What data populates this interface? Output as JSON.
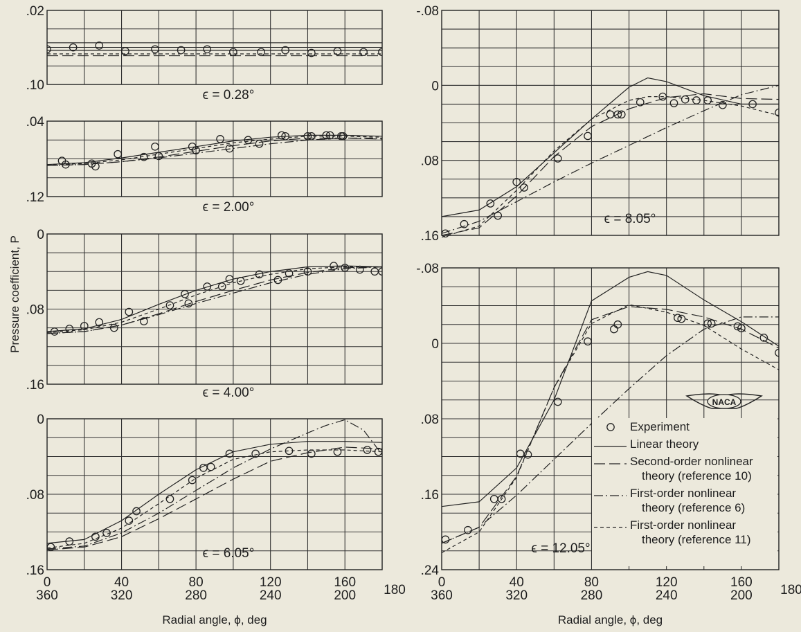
{
  "figure": {
    "ylabel": "Pressure coefficient, P",
    "xlabel": "Radial angle, ϕ, deg",
    "x_ticks_top": [
      "0",
      "40",
      "80",
      "120",
      "160"
    ],
    "x_ticks_bottom": [
      "360",
      "320",
      "280",
      "240",
      "200",
      "180"
    ],
    "logo_text": "NACA",
    "legend": [
      {
        "style": "circle",
        "label_lines": [
          "Experiment"
        ]
      },
      {
        "style": "solid",
        "label_lines": [
          "Linear theory"
        ]
      },
      {
        "style": "long-dash",
        "label_lines": [
          "Second-order nonlinear",
          "theory (reference 10)"
        ]
      },
      {
        "style": "dash-dot",
        "label_lines": [
          "First-order nonlinear",
          "theory (reference 6)"
        ]
      },
      {
        "style": "short-dash",
        "label_lines": [
          "First-order nonlinear",
          "theory (reference 11)"
        ]
      }
    ]
  },
  "chart_data": [
    {
      "type": "line",
      "panel": "left-1",
      "annotation": "ϵ = 0.28°",
      "xlim": [
        0,
        180
      ],
      "ylim": [
        0.02,
        0.1
      ],
      "y_inverted": true,
      "y_ticks": [
        ".02",
        ".10"
      ],
      "series": [
        {
          "name": "Experiment",
          "style": "points",
          "x": [
            0,
            14,
            28,
            42,
            58,
            72,
            86,
            100,
            115,
            128,
            142,
            156,
            170,
            180
          ],
          "y": [
            0.062,
            0.06,
            0.058,
            0.064,
            0.062,
            0.063,
            0.062,
            0.065,
            0.065,
            0.063,
            0.066,
            0.064,
            0.065,
            0.065
          ]
        },
        {
          "name": "Linear theory",
          "style": "solid",
          "x": [
            0,
            180
          ],
          "y": [
            0.063,
            0.063
          ]
        },
        {
          "name": "Second-order nonlinear theory (reference 10)",
          "style": "long-dash",
          "x": [
            0,
            180
          ],
          "y": [
            0.069,
            0.069
          ]
        },
        {
          "name": "First-order nonlinear theory (reference 11)",
          "style": "short-dash",
          "x": [
            0,
            180
          ],
          "y": [
            0.067,
            0.067
          ]
        },
        {
          "name": "Linear theory",
          "style": "solid",
          "x": [
            0,
            180
          ],
          "y": [
            0.055,
            0.055
          ]
        }
      ]
    },
    {
      "type": "line",
      "panel": "left-2",
      "annotation": "ϵ = 2.00°",
      "xlim": [
        0,
        180
      ],
      "ylim": [
        0.04,
        0.12
      ],
      "y_inverted": true,
      "y_ticks": [
        ".04",
        ".12"
      ],
      "series": [
        {
          "name": "Experiment",
          "style": "points",
          "x": [
            8,
            10,
            24,
            26,
            38,
            52,
            58,
            60,
            78,
            80,
            93,
            98,
            108,
            114,
            126,
            128,
            140,
            142,
            150,
            152,
            158,
            159
          ],
          "y": [
            0.082,
            0.086,
            0.085,
            0.088,
            0.075,
            0.078,
            0.067,
            0.077,
            0.067,
            0.071,
            0.059,
            0.069,
            0.06,
            0.064,
            0.055,
            0.056,
            0.056,
            0.056,
            0.055,
            0.055,
            0.056,
            0.056
          ]
        },
        {
          "name": "Linear theory",
          "style": "solid",
          "x": [
            0,
            20,
            40,
            60,
            80,
            100,
            120,
            140,
            160,
            180
          ],
          "y": [
            0.086,
            0.084,
            0.079,
            0.073,
            0.067,
            0.061,
            0.057,
            0.055,
            0.055,
            0.056
          ]
        },
        {
          "name": "Second-order nonlinear theory (reference 10)",
          "style": "long-dash",
          "x": [
            0,
            20,
            40,
            60,
            80,
            100,
            120,
            140,
            160,
            180
          ],
          "y": [
            0.087,
            0.086,
            0.083,
            0.078,
            0.072,
            0.066,
            0.061,
            0.058,
            0.058,
            0.059
          ]
        },
        {
          "name": "First-order nonlinear theory (reference 6)",
          "style": "dash-dot",
          "x": [
            0,
            20,
            40,
            60,
            80,
            100,
            120,
            140,
            160,
            180
          ],
          "y": [
            0.087,
            0.086,
            0.083,
            0.079,
            0.074,
            0.069,
            0.064,
            0.06,
            0.058,
            0.058
          ]
        },
        {
          "name": "First-order nonlinear theory (reference 11)",
          "style": "short-dash",
          "x": [
            0,
            20,
            40,
            60,
            80,
            100,
            120,
            140,
            160,
            180
          ],
          "y": [
            0.086,
            0.085,
            0.081,
            0.075,
            0.069,
            0.063,
            0.059,
            0.056,
            0.056,
            0.057
          ]
        }
      ]
    },
    {
      "type": "line",
      "panel": "left-3",
      "annotation": "ϵ = 4.00°",
      "xlim": [
        0,
        180
      ],
      "ylim": [
        0,
        0.16
      ],
      "y_inverted": true,
      "y_ticks": [
        "0",
        ".08",
        ".16"
      ],
      "series": [
        {
          "name": "Experiment",
          "style": "points",
          "x": [
            4,
            12,
            20,
            28,
            36,
            44,
            52,
            66,
            74,
            76,
            86,
            94,
            98,
            104,
            114,
            124,
            130,
            140,
            154,
            160,
            168,
            176,
            180
          ],
          "y": [
            0.104,
            0.101,
            0.098,
            0.094,
            0.1,
            0.083,
            0.093,
            0.076,
            0.064,
            0.074,
            0.056,
            0.056,
            0.048,
            0.05,
            0.043,
            0.049,
            0.042,
            0.04,
            0.034,
            0.036,
            0.038,
            0.04,
            0.04
          ]
        },
        {
          "name": "Linear theory",
          "style": "solid",
          "x": [
            0,
            20,
            40,
            60,
            80,
            100,
            120,
            140,
            160,
            180
          ],
          "y": [
            0.104,
            0.101,
            0.091,
            0.075,
            0.06,
            0.048,
            0.04,
            0.035,
            0.034,
            0.035
          ]
        },
        {
          "name": "Second-order nonlinear theory (reference 10)",
          "style": "long-dash",
          "x": [
            0,
            20,
            40,
            60,
            80,
            100,
            120,
            140,
            160,
            180
          ],
          "y": [
            0.106,
            0.104,
            0.097,
            0.085,
            0.072,
            0.06,
            0.049,
            0.041,
            0.036,
            0.035
          ]
        },
        {
          "name": "First-order nonlinear theory (reference 6)",
          "style": "dash-dot",
          "x": [
            0,
            20,
            40,
            60,
            80,
            100,
            120,
            140,
            160,
            180
          ],
          "y": [
            0.106,
            0.104,
            0.097,
            0.086,
            0.074,
            0.063,
            0.052,
            0.043,
            0.037,
            0.035
          ]
        },
        {
          "name": "First-order nonlinear theory (reference 11)",
          "style": "short-dash",
          "x": [
            0,
            20,
            40,
            60,
            80,
            100,
            120,
            140,
            160,
            180
          ],
          "y": [
            0.105,
            0.102,
            0.094,
            0.08,
            0.065,
            0.052,
            0.043,
            0.037,
            0.035,
            0.035
          ]
        }
      ]
    },
    {
      "type": "line",
      "panel": "left-4",
      "annotation": "ϵ = 6.05°",
      "xlim": [
        0,
        180
      ],
      "ylim": [
        0,
        0.16
      ],
      "y_inverted": true,
      "y_ticks": [
        "0",
        ".08",
        ".16"
      ],
      "series": [
        {
          "name": "Experiment",
          "style": "points",
          "x": [
            2,
            12,
            26,
            32,
            44,
            48,
            66,
            78,
            84,
            88,
            98,
            112,
            130,
            142,
            156,
            172,
            178
          ],
          "y": [
            0.136,
            0.13,
            0.125,
            0.121,
            0.108,
            0.098,
            0.085,
            0.065,
            0.052,
            0.051,
            0.037,
            0.037,
            0.034,
            0.037,
            0.035,
            0.033,
            0.035
          ]
        },
        {
          "name": "Linear theory",
          "style": "solid",
          "x": [
            0,
            20,
            40,
            60,
            80,
            100,
            120,
            140,
            160,
            180
          ],
          "y": [
            0.132,
            0.128,
            0.108,
            0.08,
            0.054,
            0.035,
            0.027,
            0.024,
            0.024,
            0.025
          ]
        },
        {
          "name": "Second-order nonlinear theory (reference 10)",
          "style": "long-dash",
          "x": [
            0,
            20,
            40,
            60,
            80,
            100,
            120,
            140,
            160,
            180
          ],
          "y": [
            0.139,
            0.136,
            0.125,
            0.106,
            0.085,
            0.064,
            0.045,
            0.036,
            0.03,
            0.032
          ]
        },
        {
          "name": "First-order nonlinear theory (reference 6)",
          "style": "dash-dot",
          "x": [
            0,
            20,
            40,
            60,
            80,
            100,
            120,
            140,
            150,
            160,
            170,
            180
          ],
          "y": [
            0.138,
            0.135,
            0.121,
            0.1,
            0.076,
            0.052,
            0.032,
            0.015,
            0.007,
            0.001,
            0.012,
            0.038
          ]
        },
        {
          "name": "First-order nonlinear theory (reference 11)",
          "style": "short-dash",
          "x": [
            0,
            20,
            40,
            60,
            80,
            100,
            120,
            140,
            160,
            180
          ],
          "y": [
            0.137,
            0.132,
            0.116,
            0.09,
            0.063,
            0.043,
            0.035,
            0.033,
            0.033,
            0.035
          ]
        }
      ]
    },
    {
      "type": "line",
      "panel": "right-1",
      "annotation": "ϵ = 8.05°",
      "xlim": [
        0,
        180
      ],
      "ylim": [
        -0.08,
        0.16
      ],
      "y_inverted": true,
      "y_ticks": [
        "-.08",
        "0",
        ".08",
        ".16"
      ],
      "series": [
        {
          "name": "Experiment",
          "style": "points",
          "x": [
            2,
            12,
            26,
            30,
            40,
            44,
            62,
            78,
            90,
            94,
            96,
            106,
            118,
            124,
            130,
            136,
            142,
            150,
            166,
            180
          ],
          "y": [
            0.158,
            0.148,
            0.126,
            0.139,
            0.103,
            0.109,
            0.078,
            0.054,
            0.031,
            0.031,
            0.031,
            0.018,
            0.012,
            0.019,
            0.015,
            0.016,
            0.016,
            0.021,
            0.02,
            0.029
          ]
        },
        {
          "name": "Linear theory",
          "style": "solid",
          "x": [
            0,
            20,
            40,
            60,
            80,
            100,
            110,
            120,
            140,
            160,
            180
          ],
          "y": [
            0.14,
            0.133,
            0.108,
            0.072,
            0.036,
            0.002,
            -0.008,
            -0.004,
            0.011,
            0.02,
            0.02
          ]
        },
        {
          "name": "Second-order nonlinear theory (reference 10)",
          "style": "long-dash",
          "x": [
            0,
            20,
            40,
            60,
            80,
            100,
            120,
            140,
            160,
            180
          ],
          "y": [
            0.16,
            0.152,
            0.118,
            0.076,
            0.044,
            0.025,
            0.013,
            0.009,
            0.014,
            0.015
          ]
        },
        {
          "name": "First-order nonlinear theory (reference 6)",
          "style": "dash-dot",
          "x": [
            0,
            20,
            40,
            60,
            80,
            100,
            120,
            140,
            160,
            180
          ],
          "y": [
            0.158,
            0.145,
            0.124,
            0.103,
            0.083,
            0.064,
            0.045,
            0.027,
            0.01,
            0.0
          ]
        },
        {
          "name": "First-order nonlinear theory (reference 11)",
          "style": "short-dash",
          "x": [
            0,
            20,
            40,
            60,
            80,
            100,
            110,
            120,
            140,
            160,
            180
          ],
          "y": [
            0.162,
            0.15,
            0.112,
            0.07,
            0.036,
            0.016,
            0.012,
            0.012,
            0.016,
            0.022,
            0.032
          ]
        }
      ]
    },
    {
      "type": "line",
      "panel": "right-2",
      "annotation": "ϵ = 12.05°",
      "xlim": [
        0,
        180
      ],
      "ylim": [
        -0.08,
        0.24
      ],
      "y_inverted": true,
      "y_ticks": [
        "-.08",
        "0",
        ".08",
        ".16",
        ".24"
      ],
      "series": [
        {
          "name": "Experiment",
          "style": "points",
          "x": [
            2,
            14,
            28,
            32,
            42,
            46,
            62,
            78,
            92,
            94,
            126,
            128,
            142,
            144,
            158,
            160,
            172,
            180
          ],
          "y": [
            0.208,
            0.198,
            0.165,
            0.165,
            0.117,
            0.118,
            0.062,
            -0.002,
            -0.015,
            -0.02,
            -0.027,
            -0.026,
            -0.021,
            -0.021,
            -0.018,
            -0.016,
            -0.006,
            0.01
          ]
        },
        {
          "name": "Linear theory",
          "style": "solid",
          "x": [
            0,
            20,
            40,
            60,
            80,
            100,
            110,
            120,
            140,
            160,
            180
          ],
          "y": [
            0.173,
            0.168,
            0.132,
            0.06,
            -0.045,
            -0.07,
            -0.076,
            -0.072,
            -0.046,
            -0.023,
            0.003
          ]
        },
        {
          "name": "Second-order nonlinear theory (reference 10)",
          "style": "long-dash",
          "x": [
            0,
            20,
            40,
            60,
            80,
            100,
            120,
            140,
            160,
            180
          ],
          "y": [
            0.212,
            0.195,
            0.141,
            0.047,
            -0.025,
            -0.039,
            -0.036,
            -0.028,
            -0.015,
            0.005
          ]
        },
        {
          "name": "First-order nonlinear theory (reference 6)",
          "style": "dash-dot",
          "x": [
            0,
            20,
            40,
            60,
            80,
            100,
            120,
            140,
            160,
            180
          ],
          "y": [
            0.212,
            0.195,
            0.161,
            0.123,
            0.085,
            0.048,
            0.013,
            -0.015,
            -0.028,
            -0.028
          ]
        },
        {
          "name": "First-order nonlinear theory (reference 11)",
          "style": "short-dash",
          "x": [
            0,
            20,
            40,
            60,
            80,
            100,
            120,
            140,
            160,
            180
          ],
          "y": [
            0.222,
            0.2,
            0.142,
            0.047,
            -0.021,
            -0.041,
            -0.033,
            -0.019,
            0.006,
            0.028
          ]
        }
      ]
    }
  ]
}
